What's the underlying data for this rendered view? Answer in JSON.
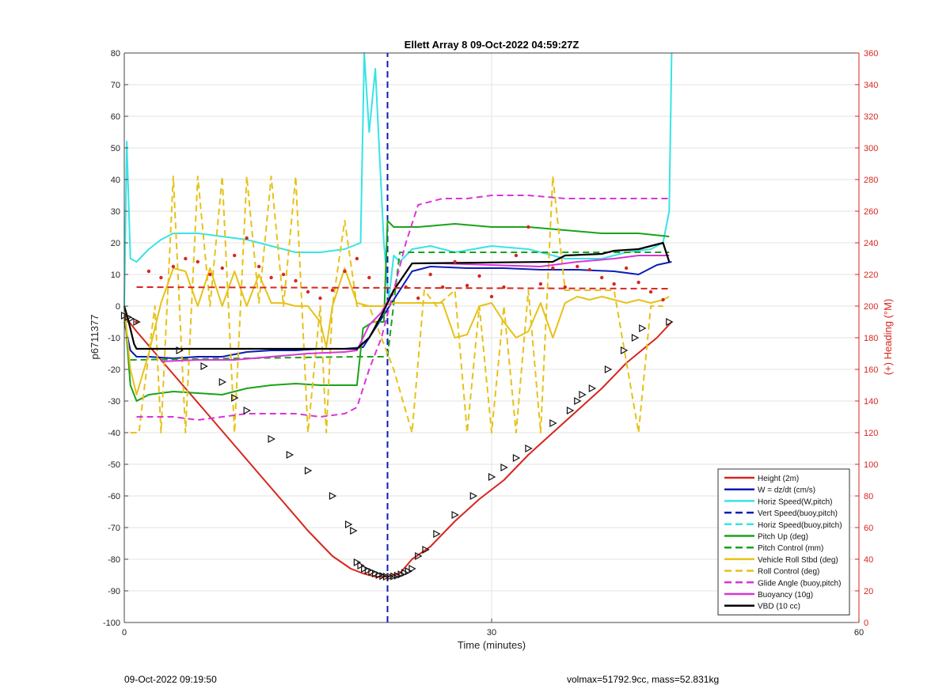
{
  "chart_data": {
    "type": "line",
    "title": "Ellett Array 8 09-Oct-2022 04:59:27Z",
    "xlabel": "Time (minutes)",
    "ylabel": "p6711377",
    "ylabel_right": "(+) Heading (°M)",
    "xlim": [
      0,
      60
    ],
    "ylim": [
      -100,
      80
    ],
    "ylim_right": [
      0,
      360
    ],
    "x_ticks": [
      "0",
      "30",
      "60"
    ],
    "y_ticks": [
      "-100",
      "-90",
      "-80",
      "-70",
      "-60",
      "-50",
      "-40",
      "-30",
      "-20",
      "-10",
      "0",
      "10",
      "20",
      "30",
      "40",
      "50",
      "60",
      "70",
      "80"
    ],
    "y_ticks_right": [
      "0",
      "20",
      "40",
      "60",
      "80",
      "100",
      "120",
      "140",
      "160",
      "180",
      "200",
      "220",
      "240",
      "260",
      "280",
      "300",
      "320",
      "340",
      "360"
    ],
    "grid": true,
    "legend_placement": "bottom-right",
    "colors": {
      "red": "#d7261e",
      "blue": "#0c1cb5",
      "cyan": "#38e3e6",
      "green": "#1aa31a",
      "gold": "#e6c21a",
      "magenta": "#d934d9",
      "black": "#000000"
    },
    "series": [
      {
        "name": "Height (2m)",
        "color": "#d7261e",
        "style": "solid",
        "x": [
          0,
          1,
          3,
          5,
          7,
          9,
          11,
          13,
          15,
          17,
          18.5,
          19.5,
          20.5,
          21.5,
          22.5,
          23.5,
          25,
          27,
          29,
          31,
          33,
          35,
          37,
          39,
          41,
          43.5,
          44.7
        ],
        "y": [
          -3,
          -8,
          -17,
          -26,
          -35,
          -44,
          -53,
          -62,
          -71,
          -79,
          -83,
          -84.5,
          -85.5,
          -85.5,
          -84.5,
          -80,
          -76,
          -68,
          -61,
          -55,
          -47,
          -40,
          -33,
          -26,
          -18,
          -10,
          -5
        ]
      },
      {
        "name": "W = dz/dt (cm/s)",
        "color": "#0c1cb5",
        "style": "solid",
        "x": [
          0,
          0.5,
          1,
          2,
          4,
          6,
          8,
          10,
          12,
          14,
          16,
          18,
          19.5,
          20.5,
          21.5,
          22.5,
          23.5,
          25,
          28,
          31,
          34,
          37,
          40,
          42,
          43.5,
          44.7
        ],
        "y": [
          -5,
          -14,
          -16,
          -16,
          -16.5,
          -16,
          -16,
          -14.5,
          -14,
          -14,
          -13.5,
          -13.5,
          -13,
          -7,
          -1,
          5,
          11,
          12.5,
          12,
          12,
          11.5,
          11.5,
          11,
          10,
          13,
          14
        ]
      },
      {
        "name": "Horiz Speed(W,pitch)",
        "color": "#38e3e6",
        "style": "solid",
        "x": [
          0,
          0.2,
          0.5,
          1,
          2,
          3,
          4,
          6,
          8,
          10,
          12,
          14,
          16,
          18,
          19.3,
          19.6,
          20,
          20.5,
          21.2,
          21.6,
          22,
          22.5,
          23.5,
          25,
          27,
          30,
          33,
          36,
          39,
          41,
          43,
          44,
          44.5,
          44.7
        ],
        "y": [
          0,
          52,
          15,
          14,
          18,
          21,
          23,
          23,
          22,
          21,
          19,
          17,
          17,
          18,
          20,
          80,
          55,
          75,
          20,
          2,
          16,
          14,
          18,
          19,
          17,
          19,
          18,
          15,
          15,
          17,
          18,
          20,
          30,
          80
        ]
      },
      {
        "name": "Vert Speed(buoy,pitch)",
        "color": "#0c1cb5",
        "style": "dashed",
        "x": [
          21.5,
          21.5
        ],
        "y": [
          -100,
          80
        ]
      },
      {
        "name": "Horiz Speed(buoy,pitch)",
        "color": "#38e3e6",
        "style": "dashed",
        "x": [],
        "y": []
      },
      {
        "name": "Pitch Up (deg)",
        "color": "#1aa31a",
        "style": "solid",
        "x": [
          0,
          0.5,
          1,
          2,
          4,
          6,
          8,
          10,
          12,
          14,
          16,
          18,
          19,
          19.5,
          20.3,
          21.2,
          21.5,
          22,
          24,
          27,
          30,
          33,
          36,
          39,
          42,
          44.5
        ],
        "y": [
          0,
          -25,
          -30,
          -28,
          -27,
          -27.5,
          -28,
          -26,
          -25,
          -24.5,
          -25,
          -25,
          -25,
          -7,
          -5,
          -5,
          27,
          25,
          25,
          26,
          25,
          25,
          24,
          23,
          23,
          22
        ]
      },
      {
        "name": "Pitch Control (mm)",
        "color": "#1aa31a",
        "style": "dashed",
        "x": [
          0.5,
          19,
          21.5,
          22.5,
          44.5
        ],
        "y": [
          -17,
          -16,
          -16,
          17,
          17
        ]
      },
      {
        "name": "Vehicle Roll Stbd (deg)",
        "color": "#e6c21a",
        "style": "solid",
        "x": [
          0,
          0.5,
          1,
          2,
          3,
          4,
          5,
          6,
          7,
          8,
          9,
          10,
          11,
          12,
          13,
          14,
          15,
          16,
          16.5,
          17,
          18,
          19,
          20,
          21,
          22,
          23,
          24,
          25,
          26,
          27,
          28,
          29,
          30,
          31,
          32,
          33,
          34,
          35,
          36,
          37,
          38,
          39,
          40,
          41,
          42,
          43,
          44,
          44.5
        ],
        "y": [
          0,
          -20,
          -28,
          -15,
          1,
          12,
          11,
          0,
          12,
          0,
          11,
          0,
          10,
          1,
          1,
          0,
          0,
          -5,
          -13,
          0,
          12,
          1,
          0,
          0,
          1,
          1,
          1,
          1,
          1,
          -10,
          -9,
          0,
          1,
          -5,
          -10,
          -8,
          1,
          -10,
          1,
          3,
          2,
          3,
          2,
          1,
          2,
          1,
          2,
          3
        ]
      },
      {
        "name": "Roll Control (deg)",
        "color": "#e6c21a",
        "style": "dashed",
        "x": [
          0.5,
          1.2,
          1.5,
          2.5,
          3,
          4,
          5,
          6,
          7,
          8,
          9,
          10,
          11,
          12,
          13,
          14,
          15,
          16,
          16.5,
          17,
          18,
          19,
          20,
          22,
          23.5,
          24.5,
          25.5,
          27,
          28,
          29,
          30,
          31,
          32,
          33,
          34,
          35,
          36,
          37,
          38,
          40,
          42,
          43,
          44
        ],
        "y": [
          -40,
          -40,
          -30,
          0,
          -40,
          41,
          -40,
          41,
          0,
          41,
          -40,
          41,
          1,
          41,
          0,
          41,
          -40,
          0,
          -40,
          0,
          27,
          0,
          0,
          -20,
          -40,
          5,
          0,
          5,
          -40,
          0,
          -40,
          0,
          -40,
          5,
          -40,
          41,
          5,
          5,
          5,
          5,
          -40,
          0,
          0
        ]
      },
      {
        "name": "Glide Angle (buoy,pitch)",
        "color": "#d934d9",
        "style": "dashed",
        "x": [
          1,
          2,
          4,
          6,
          8,
          10,
          12,
          14,
          16,
          18,
          19,
          20,
          21,
          22,
          23,
          24,
          26,
          28,
          30,
          33,
          36,
          39,
          42,
          44.5
        ],
        "y": [
          -35,
          -35,
          -35,
          -36,
          -35,
          -34,
          -34,
          -34,
          -35,
          -34,
          -32,
          -20,
          -10,
          5,
          20,
          32,
          34,
          34,
          35,
          35,
          34,
          34,
          34,
          34
        ]
      },
      {
        "name": "Buoyancy (10g)",
        "color": "#d934d9",
        "style": "solid",
        "x": [
          3,
          6,
          9,
          12,
          15,
          18,
          19,
          20,
          21,
          22,
          23.5,
          26,
          30,
          34,
          37,
          40,
          42,
          44.5
        ],
        "y": [
          -17.5,
          -17,
          -17,
          -16,
          -15,
          -14.5,
          -14,
          -6,
          -2,
          5,
          13.5,
          13.5,
          13,
          12.5,
          14,
          15,
          16,
          16
        ]
      },
      {
        "name": "VBD (10 cc)",
        "color": "#000000",
        "style": "solid",
        "x": [
          0,
          0.3,
          0.8,
          1,
          19,
          20,
          21,
          22,
          23.5,
          35,
          36,
          39,
          40,
          42,
          43,
          44,
          44.5
        ],
        "y": [
          0,
          -4,
          -12,
          -13.5,
          -13.5,
          -10,
          -3,
          5,
          13.5,
          14,
          16,
          16.5,
          17.5,
          18,
          19,
          20,
          14
        ]
      },
      {
        "name": "Heading (°M)",
        "axis": "right",
        "color": "#d7261e",
        "style": "dotted",
        "x": [
          1,
          2,
          3,
          4,
          5,
          6,
          7,
          8,
          9,
          10,
          11,
          12,
          13,
          14,
          15,
          16,
          17,
          18,
          19,
          20,
          23,
          24,
          25,
          26,
          27,
          28,
          29,
          30,
          31,
          32,
          33,
          34,
          35,
          36,
          37,
          38,
          39,
          40,
          41,
          42,
          43,
          44
        ],
        "y": [
          190,
          222,
          218,
          225,
          230,
          228,
          220,
          224,
          232,
          243,
          225,
          218,
          220,
          216,
          209,
          205,
          210,
          222,
          230,
          218,
          212,
          205,
          220,
          212,
          228,
          213,
          219,
          206,
          212,
          232,
          250,
          214,
          224,
          212,
          225,
          223,
          218,
          214,
          224,
          215,
          209,
          204
        ]
      },
      {
        "name": "Heading ref",
        "axis": "right",
        "color": "#d7261e",
        "style": "dashed",
        "x": [
          1,
          44.5
        ],
        "y": [
          212,
          211
        ]
      }
    ],
    "markers": {
      "on_series": "Height (2m)",
      "style": "triangle",
      "x": [
        0,
        0.3,
        0.5,
        1,
        4.5,
        6.5,
        8,
        9,
        10,
        12,
        13.5,
        15,
        17,
        18.3,
        18.7,
        19,
        19.3,
        19.6,
        19.9,
        20.2,
        20.5,
        20.8,
        21.1,
        21.4,
        21.7,
        22,
        22.3,
        22.6,
        22.9,
        23.2,
        23.5,
        24,
        24.6,
        25.5,
        27,
        28.5,
        30,
        31,
        32,
        33,
        35,
        36.4,
        37,
        37.4,
        38.2,
        39.5,
        40.8,
        41.7,
        42.3,
        44.5
      ],
      "y": [
        -3,
        -3.5,
        -4,
        -5,
        -14,
        -19,
        -24,
        -29,
        -33,
        -42,
        -47,
        -52,
        -60,
        -69,
        -71,
        -81,
        -82,
        -83,
        -83.5,
        -84,
        -84.5,
        -85,
        -85.3,
        -85.5,
        -85.5,
        -85.4,
        -85.2,
        -84.8,
        -84.3,
        -83.8,
        -83,
        -79,
        -77,
        -72,
        -66,
        -60,
        -54,
        -51,
        -48,
        -45,
        -37,
        -33,
        -30,
        -28,
        -26,
        -20,
        -14,
        -10,
        -7,
        -5
      ]
    },
    "legend": [
      "Height (2m)",
      "W = dz/dt (cm/s)",
      "Horiz Speed(W,pitch)",
      "Vert Speed(buoy,pitch)",
      "Horiz Speed(buoy,pitch)",
      "Pitch Up (deg)",
      "Pitch Control (mm)",
      "Vehicle Roll Stbd (deg)",
      "Roll Control (deg)",
      "Glide Angle (buoy,pitch)",
      "Buoyancy (10g)",
      "VBD (10 cc)"
    ]
  },
  "footer": {
    "left": "09-Oct-2022 09:19:50",
    "right": "volmax=51792.9cc, mass=52.831kg"
  }
}
